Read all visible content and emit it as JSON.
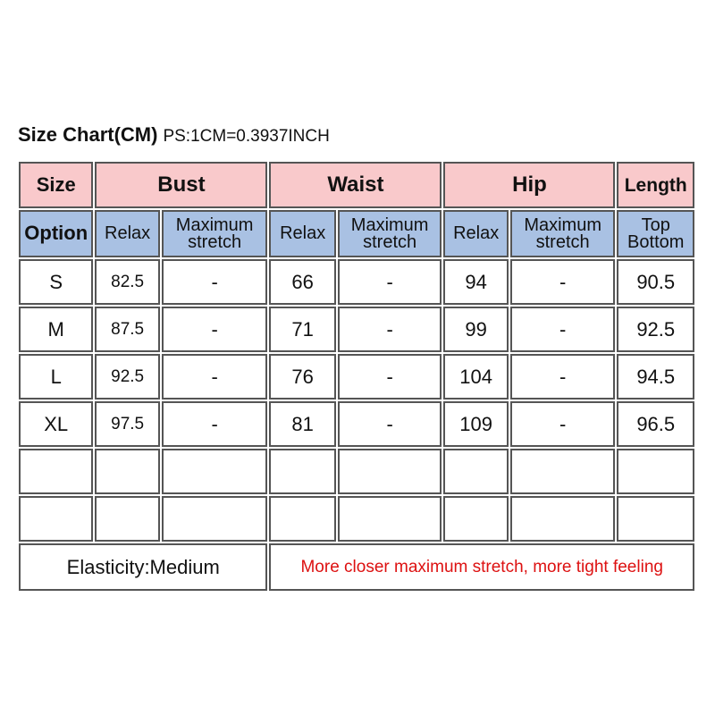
{
  "header": {
    "title": "Size Chart(CM)",
    "note": "PS:1CM=0.3937INCH"
  },
  "table": {
    "groups": [
      "Size",
      "Bust",
      "Waist",
      "Hip",
      "Length"
    ],
    "subheaders": [
      "Option",
      "Relax",
      "Maximum stretch",
      "Relax",
      "Maximum stretch",
      "Relax",
      "Maximum stretch",
      "Top Bottom"
    ],
    "rows": [
      [
        "S",
        82.5,
        "-",
        66,
        "-",
        94,
        "-",
        90.5
      ],
      [
        "M",
        87.5,
        "-",
        71,
        "-",
        99,
        "-",
        92.5
      ],
      [
        "L",
        92.5,
        "-",
        76,
        "-",
        104,
        "-",
        94.5
      ],
      [
        "XL",
        97.5,
        "-",
        81,
        "-",
        109,
        "-",
        96.5
      ]
    ],
    "footer": {
      "elasticity": "Elasticity:Medium",
      "note": "More closer maximum stretch, more tight feeling"
    }
  }
}
